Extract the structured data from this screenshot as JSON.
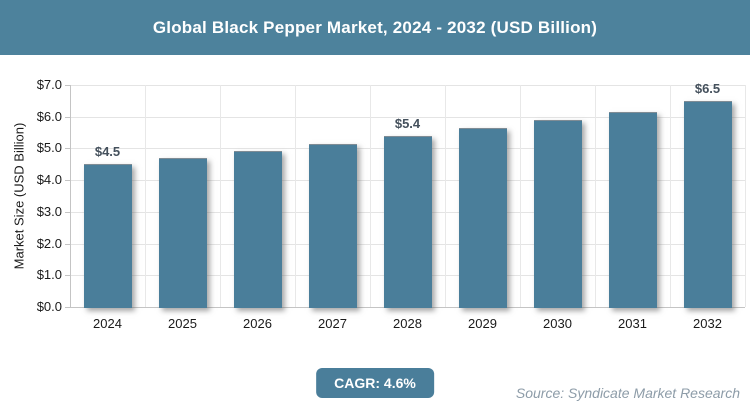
{
  "title": "Global Black Pepper Market, 2024 - 2032 (USD Billion)",
  "chart_data": {
    "type": "bar",
    "title": "Global Black Pepper Market, 2024 - 2032 (USD Billion)",
    "categories": [
      "2024",
      "2025",
      "2026",
      "2027",
      "2028",
      "2029",
      "2030",
      "2031",
      "2032"
    ],
    "values": [
      4.5,
      4.71,
      4.92,
      5.15,
      5.39,
      5.63,
      5.89,
      6.16,
      6.5
    ],
    "bar_labels": [
      "$4.5",
      "",
      "",
      "",
      "$5.4",
      "",
      "",
      "",
      "$6.5"
    ],
    "xlabel": "",
    "ylabel": "Market Size (USD Billion)",
    "ylim": [
      0,
      7
    ],
    "yticks": [
      "$0.0",
      "$1.0",
      "$2.0",
      "$3.0",
      "$4.0",
      "$5.0",
      "$6.0",
      "$7.0"
    ],
    "grid": true,
    "legend": "none"
  },
  "footer": {
    "cagr_label": "CAGR: 4.6%",
    "source": "Source: Syndicate Market Research"
  },
  "colors": {
    "header_bg": "#4d829c",
    "bar": "#4a7e9a",
    "badge_bg": "#4a7e9a",
    "title_text": "#ffffff",
    "gridline": "#e4e4e4",
    "axis": "#c4c4c4",
    "data_label": "#44505c",
    "source_text": "#8d9ca8"
  }
}
